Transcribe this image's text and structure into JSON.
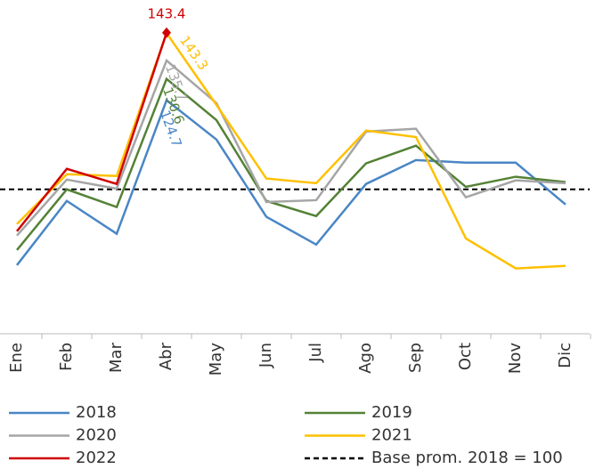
{
  "chart_data": {
    "type": "line",
    "categories": [
      "Ene",
      "Feb",
      "Mar",
      "Abr",
      "May",
      "Jun",
      "Jul",
      "Ago",
      "Sep",
      "Oct",
      "Nov",
      "Dic"
    ],
    "ylim": [
      60,
      150
    ],
    "series": [
      {
        "name": "2018",
        "color": "#4a86c5",
        "label_index": 3,
        "values": [
          79.0,
          96.8,
          87.7,
          124.7,
          113.8,
          92.4,
          84.7,
          101.5,
          108.1,
          107.4,
          107.4,
          95.8
        ]
      },
      {
        "name": "2019",
        "color": "#548235",
        "label_index": 3,
        "values": [
          83.2,
          100.0,
          95.1,
          130.6,
          119.2,
          96.8,
          92.6,
          107.2,
          112.1,
          100.7,
          103.5,
          102.0
        ]
      },
      {
        "name": "2020",
        "color": "#a5a5a5",
        "label_index": 3,
        "values": [
          87.2,
          102.7,
          100.2,
          135.7,
          123.9,
          96.5,
          97.0,
          116.0,
          116.8,
          97.8,
          102.5,
          101.7
        ]
      },
      {
        "name": "2021",
        "color": "#ffc000",
        "label_index": 3,
        "values": [
          90.4,
          104.2,
          103.7,
          143.3,
          123.4,
          103.0,
          101.7,
          116.3,
          114.5,
          86.4,
          78.1,
          78.8
        ]
      },
      {
        "name": "2022",
        "color": "#d00000",
        "label_index": 3,
        "marker": "diamond",
        "values": [
          88.4,
          105.7,
          101.5,
          143.4,
          null,
          null,
          null,
          null,
          null,
          null,
          null,
          null
        ]
      }
    ],
    "baseline": {
      "name": "Base prom. 2018 = 100",
      "value": 100,
      "color": "#000000",
      "dashed": true
    }
  }
}
